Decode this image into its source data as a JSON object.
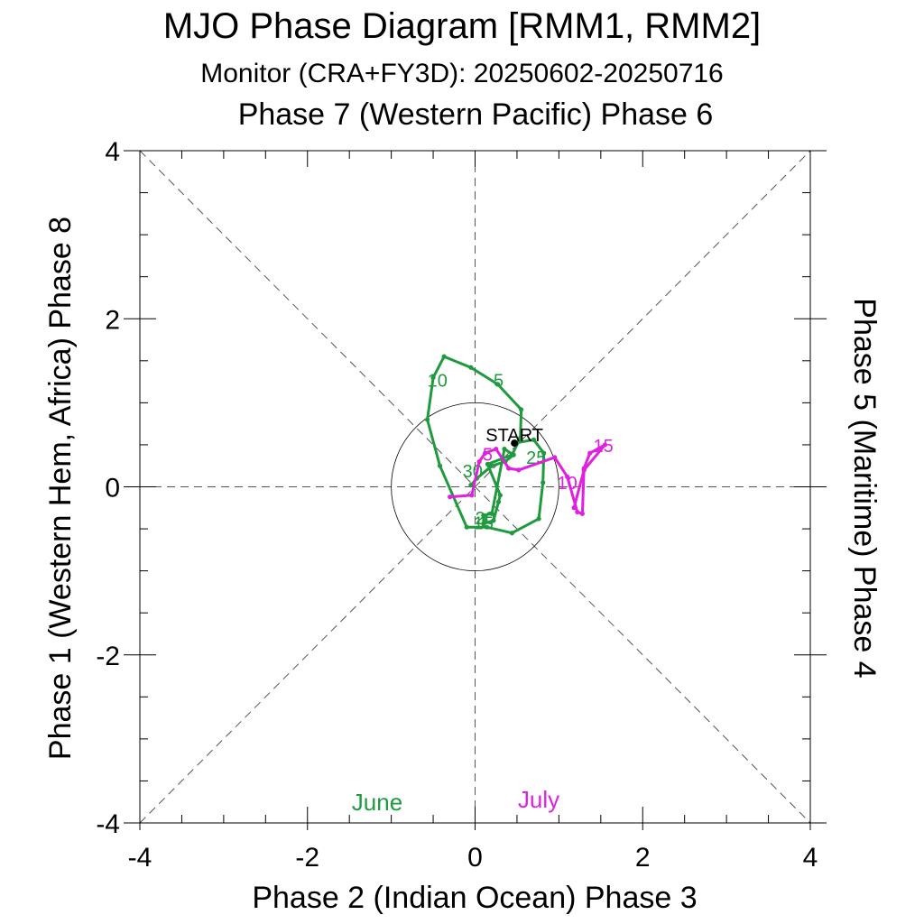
{
  "chart_data": {
    "type": "line",
    "title": "MJO Phase Diagram [RMM1, RMM2]",
    "subtitle": "Monitor (CRA+FY3D): 20250602-20250716",
    "xlabel": "Phase 2 (Indian Ocean) Phase 3",
    "ylabel": "Phase 1 (Western Hem, Africa) Phase 8",
    "top_label": "Phase 7 (Western Pacific) Phase 6",
    "right_label": "Phase 5 (Maritime) Phase 4",
    "xlim": [
      -4,
      4
    ],
    "ylim": [
      -4,
      4
    ],
    "x_ticks": [
      "-4",
      "-2",
      "0",
      "2",
      "4"
    ],
    "y_ticks": [
      "-4",
      "-2",
      "0",
      "2",
      "4"
    ],
    "reference_circle_radius": 1,
    "start_label": "START",
    "start_point": [
      0.47,
      0.52
    ],
    "series": [
      {
        "name": "June",
        "color": "#1f9a3e",
        "points": [
          [
            0.47,
            0.52
          ],
          [
            0.7,
            0.56
          ],
          [
            0.82,
            0.4
          ],
          [
            0.81,
            0.05
          ],
          [
            0.76,
            -0.38
          ],
          [
            0.44,
            -0.55
          ],
          [
            0.14,
            -0.48
          ],
          [
            -0.1,
            -0.48
          ],
          [
            -0.42,
            0.25
          ],
          [
            -0.57,
            0.8
          ],
          [
            -0.5,
            1.3
          ],
          [
            -0.37,
            1.55
          ],
          [
            -0.05,
            1.42
          ],
          [
            0.27,
            1.22
          ],
          [
            0.55,
            0.92
          ],
          [
            0.54,
            0.58
          ],
          [
            0.44,
            0.38
          ],
          [
            0.15,
            0.27
          ],
          [
            0.3,
            -0.1
          ],
          [
            0.28,
            -0.18
          ],
          [
            0.22,
            -0.4
          ],
          [
            0.1,
            -0.44
          ],
          [
            0.1,
            -0.34
          ],
          [
            0.2,
            -0.32
          ],
          [
            0.35,
            0.45
          ],
          [
            0.46,
            0.38
          ],
          [
            0.36,
            0.3
          ],
          [
            0.2,
            0.25
          ],
          [
            0.02,
            0.1
          ],
          [
            -0.05,
            0.02
          ]
        ],
        "day_labels": [
          {
            "text": "5",
            "at": [
              0.28,
              1.28
            ]
          },
          {
            "text": "10",
            "at": [
              -0.45,
              1.28
            ]
          },
          {
            "text": "15",
            "at": [
              0.1,
              -0.42
            ]
          },
          {
            "text": "20",
            "at": [
              0.12,
              -0.36
            ]
          },
          {
            "text": "25",
            "at": [
              0.73,
              0.36
            ]
          },
          {
            "text": "30",
            "at": [
              -0.03,
              0.2
            ]
          }
        ]
      },
      {
        "name": "July",
        "color": "#e020e0",
        "points": [
          [
            -0.3,
            -0.12
          ],
          [
            -0.04,
            -0.1
          ],
          [
            0.05,
            0.3
          ],
          [
            0.12,
            0.4
          ],
          [
            0.25,
            0.45
          ],
          [
            0.4,
            0.22
          ],
          [
            0.52,
            0.2
          ],
          [
            0.95,
            0.35
          ],
          [
            1.1,
            0.12
          ],
          [
            1.22,
            -0.3
          ],
          [
            1.28,
            -0.32
          ],
          [
            1.3,
            0.22
          ],
          [
            1.37,
            0.4
          ],
          [
            1.55,
            0.5
          ],
          [
            1.3,
            0.2
          ],
          [
            1.18,
            -0.25
          ]
        ],
        "day_labels": [
          {
            "text": "5",
            "at": [
              0.15,
              0.4
            ]
          },
          {
            "text": "10",
            "at": [
              1.1,
              0.06
            ]
          },
          {
            "text": "15",
            "at": [
              1.53,
              0.5
            ]
          }
        ]
      }
    ],
    "legend": [
      {
        "text": "June",
        "color": "#1f9a3e"
      },
      {
        "text": "July",
        "color": "#e020e0"
      }
    ]
  }
}
